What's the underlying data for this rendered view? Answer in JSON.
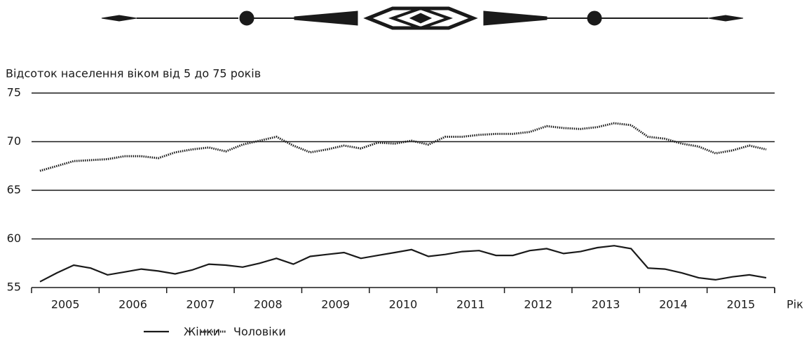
{
  "chart_data": {
    "type": "line",
    "y_label": "Відсоток населення віком від 5 до 75 років",
    "x_label": "Рік",
    "categories": [
      null,
      "2005",
      null,
      null,
      null,
      "2006",
      null,
      null,
      null,
      "2007",
      null,
      null,
      null,
      "2008",
      null,
      null,
      null,
      "2009",
      null,
      null,
      null,
      "2010",
      null,
      null,
      null,
      "2011",
      null,
      null,
      null,
      "2012",
      null,
      null,
      null,
      "2013",
      null,
      null,
      null,
      "2014",
      null,
      null,
      null,
      "2015",
      null,
      null
    ],
    "series": [
      {
        "name": "Жінки",
        "color": "#1a1a1a",
        "line_style": "solid",
        "values": [
          55.6,
          56.5,
          57.3,
          57.0,
          56.3,
          56.6,
          56.9,
          56.7,
          56.4,
          56.8,
          57.4,
          57.3,
          57.1,
          57.5,
          58.0,
          57.4,
          58.2,
          58.4,
          58.6,
          58.0,
          58.3,
          58.6,
          58.9,
          58.2,
          58.4,
          58.7,
          58.8,
          58.3,
          58.3,
          58.8,
          59.0,
          58.5,
          58.7,
          59.1,
          59.3,
          59.0,
          57.0,
          56.9,
          56.5,
          56.0,
          55.8,
          56.1,
          56.3,
          56.0
        ]
      },
      {
        "name": "Чоловіки",
        "color": "#1a1a1a",
        "line_style": "dotted",
        "values": [
          67.0,
          67.5,
          68.0,
          68.1,
          68.2,
          68.5,
          68.5,
          68.3,
          68.9,
          69.2,
          69.4,
          69.0,
          69.7,
          70.1,
          70.5,
          69.6,
          68.9,
          69.2,
          69.6,
          69.3,
          69.9,
          69.8,
          70.1,
          69.7,
          70.5,
          70.5,
          70.7,
          70.8,
          70.8,
          71.0,
          71.6,
          71.4,
          71.3,
          71.5,
          71.9,
          71.7,
          70.5,
          70.3,
          69.8,
          69.5,
          68.8,
          69.1,
          69.6,
          69.2
        ]
      }
    ],
    "ylim": [
      55,
      75
    ],
    "yticks": [
      55,
      60,
      65,
      70,
      75
    ],
    "grid": true
  }
}
